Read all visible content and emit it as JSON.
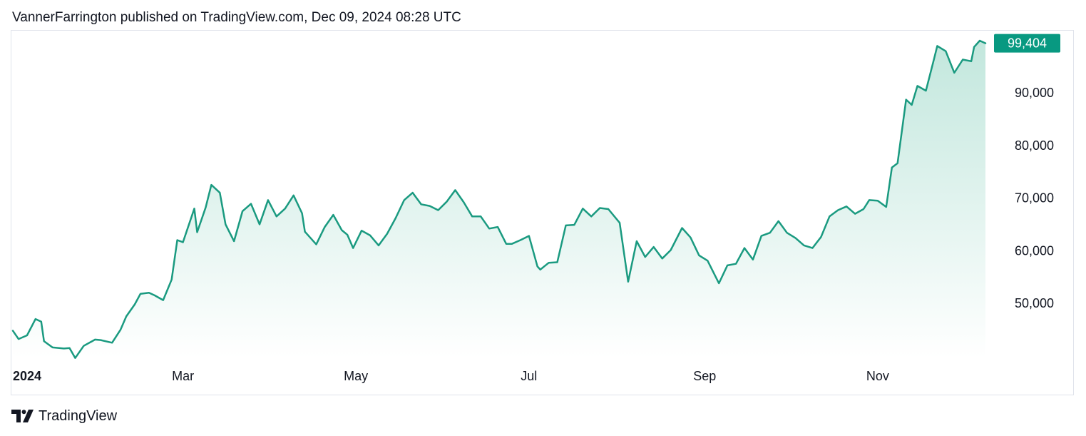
{
  "header": {
    "attribution": "VannerFarrington published on TradingView.com, Dec 09, 2024 08:28 UTC"
  },
  "footer": {
    "brand": "TradingView",
    "logo_icon": "tradingview-logo-icon"
  },
  "colors": {
    "line": "#1a9a80",
    "area_top": "#c2e7dd",
    "area_bottom": "#ffffff",
    "price_tag": "#089981",
    "border": "#e0e3eb"
  },
  "chart_data": {
    "type": "area",
    "title": "",
    "xlabel": "",
    "ylabel": "",
    "x_ticks": [
      {
        "label": "2024",
        "date": "2024-01-01",
        "bold": true
      },
      {
        "label": "Mar",
        "date": "2024-03-01",
        "bold": false
      },
      {
        "label": "May",
        "date": "2024-05-01",
        "bold": false
      },
      {
        "label": "Jul",
        "date": "2024-07-01",
        "bold": false
      },
      {
        "label": "Sep",
        "date": "2024-09-01",
        "bold": false
      },
      {
        "label": "Nov",
        "date": "2024-11-01",
        "bold": false
      }
    ],
    "y_ticks": [
      {
        "value": 50000,
        "label": "50,000"
      },
      {
        "value": 60000,
        "label": "60,000"
      },
      {
        "value": 70000,
        "label": "70,000"
      },
      {
        "value": 80000,
        "label": "80,000"
      },
      {
        "value": 90000,
        "label": "90,000"
      }
    ],
    "ylim": [
      39000,
      100000
    ],
    "xlim": [
      "2024-01-01",
      "2024-12-09"
    ],
    "last_value": 99404,
    "last_value_label": "99,404",
    "grid": false,
    "series": [
      {
        "x": [
          "2024-01-01",
          "2024-01-03",
          "2024-01-06",
          "2024-01-09",
          "2024-01-11",
          "2024-01-12",
          "2024-01-15",
          "2024-01-19",
          "2024-01-21",
          "2024-01-23",
          "2024-01-26",
          "2024-01-30",
          "2024-02-01",
          "2024-02-05",
          "2024-02-08",
          "2024-02-10",
          "2024-02-13",
          "2024-02-15",
          "2024-02-18",
          "2024-02-20",
          "2024-02-23",
          "2024-02-26",
          "2024-02-28",
          "2024-03-01",
          "2024-03-05",
          "2024-03-06",
          "2024-03-09",
          "2024-03-11",
          "2024-03-14",
          "2024-03-16",
          "2024-03-19",
          "2024-03-22",
          "2024-03-25",
          "2024-03-28",
          "2024-03-31",
          "2024-04-03",
          "2024-04-06",
          "2024-04-09",
          "2024-04-12",
          "2024-04-13",
          "2024-04-17",
          "2024-04-20",
          "2024-04-23",
          "2024-04-26",
          "2024-04-28",
          "2024-04-30",
          "2024-05-03",
          "2024-05-06",
          "2024-05-09",
          "2024-05-12",
          "2024-05-15",
          "2024-05-18",
          "2024-05-21",
          "2024-05-24",
          "2024-05-27",
          "2024-05-30",
          "2024-06-02",
          "2024-06-05",
          "2024-06-08",
          "2024-06-11",
          "2024-06-14",
          "2024-06-17",
          "2024-06-20",
          "2024-06-23",
          "2024-06-25",
          "2024-06-28",
          "2024-07-01",
          "2024-07-04",
          "2024-07-05",
          "2024-07-08",
          "2024-07-11",
          "2024-07-14",
          "2024-07-17",
          "2024-07-20",
          "2024-07-23",
          "2024-07-26",
          "2024-07-29",
          "2024-08-02",
          "2024-08-05",
          "2024-08-08",
          "2024-08-11",
          "2024-08-14",
          "2024-08-17",
          "2024-08-20",
          "2024-08-24",
          "2024-08-27",
          "2024-08-30",
          "2024-09-02",
          "2024-09-06",
          "2024-09-09",
          "2024-09-12",
          "2024-09-15",
          "2024-09-18",
          "2024-09-21",
          "2024-09-24",
          "2024-09-27",
          "2024-09-30",
          "2024-10-03",
          "2024-10-06",
          "2024-10-09",
          "2024-10-12",
          "2024-10-15",
          "2024-10-18",
          "2024-10-21",
          "2024-10-24",
          "2024-10-27",
          "2024-10-29",
          "2024-11-01",
          "2024-11-04",
          "2024-11-06",
          "2024-11-08",
          "2024-11-11",
          "2024-11-13",
          "2024-11-15",
          "2024-11-18",
          "2024-11-21",
          "2024-11-22",
          "2024-11-25",
          "2024-11-28",
          "2024-12-01",
          "2024-12-04",
          "2024-12-05",
          "2024-12-07",
          "2024-12-09"
        ],
        "values": [
          44800,
          43200,
          43900,
          47000,
          46500,
          42800,
          41600,
          41400,
          41500,
          39600,
          41900,
          43100,
          43000,
          42500,
          45000,
          47500,
          49800,
          51800,
          52000,
          51500,
          50600,
          54500,
          62000,
          61600,
          68000,
          63500,
          68200,
          72500,
          71000,
          65000,
          61800,
          67500,
          68900,
          65000,
          69600,
          66500,
          68000,
          70500,
          67100,
          63600,
          61200,
          64500,
          66800,
          63900,
          63000,
          60500,
          63800,
          62900,
          61000,
          63200,
          66200,
          69600,
          71000,
          68800,
          68500,
          67700,
          69300,
          71500,
          69200,
          66500,
          66500,
          64200,
          64500,
          61300,
          61300,
          62000,
          62800,
          57000,
          56400,
          57700,
          57800,
          64800,
          64900,
          68000,
          66500,
          68100,
          67900,
          65300,
          54100,
          61800,
          58800,
          60700,
          58500,
          60100,
          64300,
          62500,
          59100,
          58100,
          53800,
          57200,
          57500,
          60500,
          58300,
          62800,
          63400,
          65600,
          63400,
          62400,
          61000,
          60500,
          62600,
          66500,
          67700,
          68400,
          67000,
          67900,
          69600,
          69500,
          68300,
          75800,
          76600,
          88700,
          87700,
          91300,
          90400,
          96700,
          98900,
          97900,
          93800,
          96300,
          96000,
          98700,
          99900,
          99404
        ]
      }
    ]
  }
}
